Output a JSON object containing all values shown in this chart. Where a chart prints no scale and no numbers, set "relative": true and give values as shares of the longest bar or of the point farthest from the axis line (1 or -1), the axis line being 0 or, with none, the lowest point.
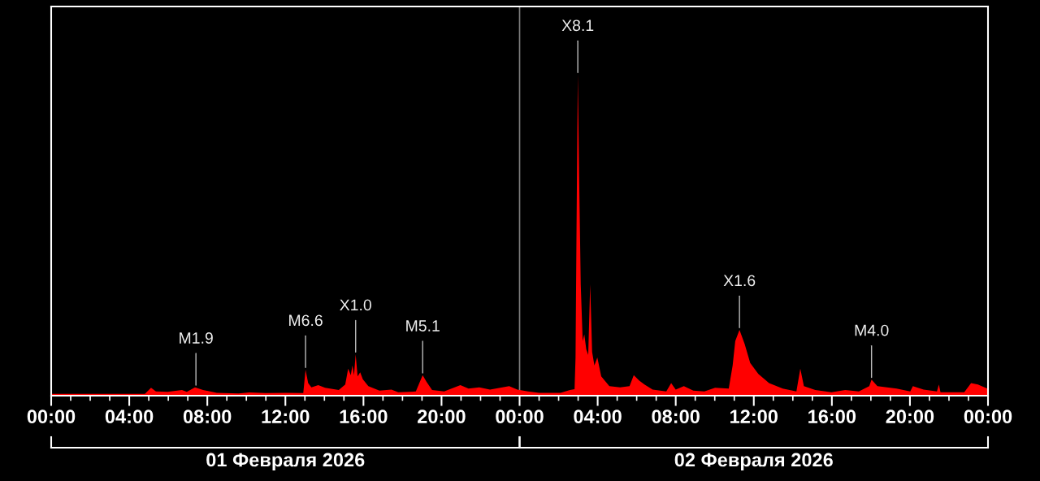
{
  "chart_data": {
    "type": "area",
    "relative": true,
    "color": "#ff0000",
    "x": [
      "2026-02-01T00:00",
      "2026-02-01T02:00",
      "2026-02-01T04:48",
      "2026-02-01T05:07",
      "2026-02-01T05:22",
      "2026-02-01T05:58",
      "2026-02-01T06:42",
      "2026-02-01T06:57",
      "2026-02-01T07:22",
      "2026-02-01T07:47",
      "2026-02-01T08:29",
      "2026-02-01T09:36",
      "2026-02-01T10:09",
      "2026-02-01T10:59",
      "2026-02-01T12:04",
      "2026-02-01T12:55",
      "2026-02-01T13:02",
      "2026-02-01T13:10",
      "2026-02-01T13:20",
      "2026-02-01T13:41",
      "2026-02-01T14:02",
      "2026-02-01T14:44",
      "2026-02-01T15:04",
      "2026-02-01T15:13",
      "2026-02-01T15:21",
      "2026-02-01T15:26",
      "2026-02-01T15:31",
      "2026-02-01T15:36",
      "2026-02-01T15:42",
      "2026-02-01T15:50",
      "2026-02-01T15:58",
      "2026-02-01T16:15",
      "2026-02-01T16:49",
      "2026-02-01T17:26",
      "2026-02-01T17:47",
      "2026-02-01T18:41",
      "2026-02-01T19:02",
      "2026-02-01T19:14",
      "2026-02-01T19:31",
      "2026-02-01T20:08",
      "2026-02-01T20:58",
      "2026-02-01T21:23",
      "2026-02-01T21:56",
      "2026-02-01T22:29",
      "2026-02-01T23:28",
      "2026-02-01T23:53",
      "2026-02-02T00:26",
      "2026-02-02T01:00",
      "2026-02-02T02:06",
      "2026-02-02T02:35",
      "2026-02-02T02:49",
      "2026-02-02T02:52",
      "2026-02-02T02:55",
      "2026-02-02T02:59",
      "2026-02-02T03:03",
      "2026-02-02T03:08",
      "2026-02-02T03:14",
      "2026-02-02T03:19",
      "2026-02-02T03:25",
      "2026-02-02T03:31",
      "2026-02-02T03:37",
      "2026-02-02T03:43",
      "2026-02-02T03:50",
      "2026-02-02T03:59",
      "2026-02-02T04:11",
      "2026-02-02T04:36",
      "2026-02-02T05:09",
      "2026-02-02T05:38",
      "2026-02-02T05:51",
      "2026-02-02T06:08",
      "2026-02-02T06:24",
      "2026-02-02T06:49",
      "2026-02-02T07:31",
      "2026-02-02T07:46",
      "2026-02-02T08:00",
      "2026-02-02T08:25",
      "2026-02-02T08:54",
      "2026-02-02T09:28",
      "2026-02-02T10:01",
      "2026-02-02T10:43",
      "2026-02-02T10:55",
      "2026-02-02T11:03",
      "2026-02-02T11:16",
      "2026-02-02T11:32",
      "2026-02-02T11:49",
      "2026-02-02T12:14",
      "2026-02-02T12:47",
      "2026-02-02T13:29",
      "2026-02-02T14:11",
      "2026-02-02T14:23",
      "2026-02-02T14:34",
      "2026-02-02T15:09",
      "2026-02-02T15:59",
      "2026-02-02T16:41",
      "2026-02-02T17:23",
      "2026-02-02T17:55",
      "2026-02-02T18:02",
      "2026-02-02T18:20",
      "2026-02-02T19:19",
      "2026-02-02T20:01",
      "2026-02-02T20:09",
      "2026-02-02T20:42",
      "2026-02-02T21:23",
      "2026-02-02T21:29",
      "2026-02-02T21:34",
      "2026-02-02T22:47",
      "2026-02-02T23:08",
      "2026-02-02T23:29",
      "2026-02-02T23:58"
    ],
    "values": [
      0.006,
      0.006,
      0.006,
      0.025,
      0.013,
      0.012,
      0.018,
      0.012,
      0.026,
      0.018,
      0.009,
      0.007,
      0.01,
      0.008,
      0.009,
      0.008,
      0.081,
      0.039,
      0.026,
      0.033,
      0.025,
      0.018,
      0.035,
      0.084,
      0.064,
      0.094,
      0.064,
      0.129,
      0.06,
      0.073,
      0.051,
      0.03,
      0.016,
      0.019,
      0.011,
      0.013,
      0.064,
      0.043,
      0.018,
      0.013,
      0.033,
      0.022,
      0.026,
      0.019,
      0.03,
      0.019,
      0.013,
      0.009,
      0.009,
      0.018,
      0.02,
      0.119,
      0.516,
      1.0,
      0.684,
      0.347,
      0.17,
      0.191,
      0.144,
      0.127,
      0.347,
      0.136,
      0.094,
      0.119,
      0.06,
      0.03,
      0.026,
      0.03,
      0.064,
      0.047,
      0.035,
      0.019,
      0.013,
      0.039,
      0.019,
      0.03,
      0.016,
      0.013,
      0.025,
      0.022,
      0.094,
      0.17,
      0.205,
      0.161,
      0.102,
      0.068,
      0.039,
      0.022,
      0.013,
      0.084,
      0.03,
      0.018,
      0.011,
      0.018,
      0.013,
      0.03,
      0.05,
      0.03,
      0.022,
      0.013,
      0.03,
      0.019,
      0.013,
      0.035,
      0.011,
      0.011,
      0.039,
      0.035,
      0.022
    ],
    "xlim": [
      "2026-02-01T00:00",
      "2026-02-03T00:00"
    ],
    "xticks": [
      {
        "value": "2026-02-01T00:00",
        "label": "00:00"
      },
      {
        "value": "2026-02-01T01:00",
        "label": null
      },
      {
        "value": "2026-02-01T02:00",
        "label": null
      },
      {
        "value": "2026-02-01T03:00",
        "label": null
      },
      {
        "value": "2026-02-01T04:00",
        "label": "04:00"
      },
      {
        "value": "2026-02-01T05:00",
        "label": null
      },
      {
        "value": "2026-02-01T06:00",
        "label": null
      },
      {
        "value": "2026-02-01T07:00",
        "label": null
      },
      {
        "value": "2026-02-01T08:00",
        "label": "08:00"
      },
      {
        "value": "2026-02-01T09:00",
        "label": null
      },
      {
        "value": "2026-02-01T10:00",
        "label": null
      },
      {
        "value": "2026-02-01T11:00",
        "label": null
      },
      {
        "value": "2026-02-01T12:00",
        "label": "12:00"
      },
      {
        "value": "2026-02-01T13:00",
        "label": null
      },
      {
        "value": "2026-02-01T14:00",
        "label": null
      },
      {
        "value": "2026-02-01T15:00",
        "label": null
      },
      {
        "value": "2026-02-01T16:00",
        "label": "16:00"
      },
      {
        "value": "2026-02-01T17:00",
        "label": null
      },
      {
        "value": "2026-02-01T18:00",
        "label": null
      },
      {
        "value": "2026-02-01T19:00",
        "label": null
      },
      {
        "value": "2026-02-01T20:00",
        "label": "20:00"
      },
      {
        "value": "2026-02-01T21:00",
        "label": null
      },
      {
        "value": "2026-02-01T22:00",
        "label": null
      },
      {
        "value": "2026-02-01T23:00",
        "label": null
      },
      {
        "value": "2026-02-02T00:00",
        "label": "00:00"
      },
      {
        "value": "2026-02-02T01:00",
        "label": null
      },
      {
        "value": "2026-02-02T02:00",
        "label": null
      },
      {
        "value": "2026-02-02T03:00",
        "label": null
      },
      {
        "value": "2026-02-02T04:00",
        "label": "04:00"
      },
      {
        "value": "2026-02-02T05:00",
        "label": null
      },
      {
        "value": "2026-02-02T06:00",
        "label": null
      },
      {
        "value": "2026-02-02T07:00",
        "label": null
      },
      {
        "value": "2026-02-02T08:00",
        "label": "08:00"
      },
      {
        "value": "2026-02-02T09:00",
        "label": null
      },
      {
        "value": "2026-02-02T10:00",
        "label": null
      },
      {
        "value": "2026-02-02T11:00",
        "label": null
      },
      {
        "value": "2026-02-02T12:00",
        "label": "12:00"
      },
      {
        "value": "2026-02-02T13:00",
        "label": null
      },
      {
        "value": "2026-02-02T14:00",
        "label": null
      },
      {
        "value": "2026-02-02T15:00",
        "label": null
      },
      {
        "value": "2026-02-02T16:00",
        "label": "16:00"
      },
      {
        "value": "2026-02-02T17:00",
        "label": null
      },
      {
        "value": "2026-02-02T18:00",
        "label": null
      },
      {
        "value": "2026-02-02T19:00",
        "label": null
      },
      {
        "value": "2026-02-02T20:00",
        "label": "20:00"
      },
      {
        "value": "2026-02-02T21:00",
        "label": null
      },
      {
        "value": "2026-02-02T22:00",
        "label": null
      },
      {
        "value": "2026-02-02T23:00",
        "label": null
      },
      {
        "value": "2026-02-03T00:00",
        "label": "00:00"
      }
    ],
    "ref_lines": [
      {
        "axis": "x",
        "value": "2026-02-02T00:00",
        "color": "#808080"
      }
    ],
    "annotations": [
      {
        "text": "M1.9",
        "x": "2026-02-01T07:25",
        "y": 0.026
      },
      {
        "text": "M6.6",
        "x": "2026-02-01T13:02",
        "y": 0.081
      },
      {
        "text": "X1.0",
        "x": "2026-02-01T15:36",
        "y": 0.129
      },
      {
        "text": "M5.1",
        "x": "2026-02-01T19:02",
        "y": 0.064
      },
      {
        "text": "X8.1",
        "x": "2026-02-02T02:59",
        "y": 1.0
      },
      {
        "text": "X1.6",
        "x": "2026-02-02T11:16",
        "y": 0.205
      },
      {
        "text": "M4.0",
        "x": "2026-02-02T18:02",
        "y": 0.05
      },
      "01 Февраля 2026",
      "02 Февраля 2026"
    ]
  }
}
